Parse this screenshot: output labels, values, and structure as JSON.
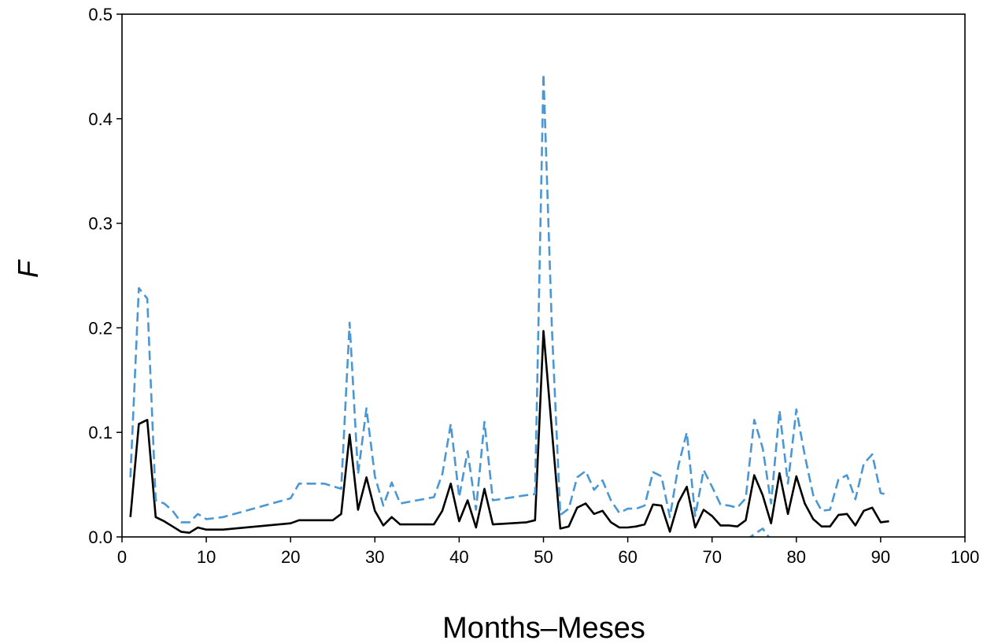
{
  "chart_data": {
    "type": "line",
    "title": "",
    "xlabel": "Months–Meses",
    "ylabel": "F",
    "xlim": [
      0,
      100
    ],
    "ylim": [
      0.0,
      0.5
    ],
    "xticks": [
      0,
      10,
      20,
      30,
      40,
      50,
      60,
      70,
      80,
      90,
      100
    ],
    "xtick_labels": [
      "0",
      "10",
      "20",
      "30",
      "40",
      "50",
      "60",
      "70",
      "80",
      "90",
      "100"
    ],
    "yticks": [
      0.0,
      0.1,
      0.2,
      0.3,
      0.4,
      0.5
    ],
    "ytick_labels": [
      "0.0",
      "0.1",
      "0.2",
      "0.3",
      "0.4",
      "0.5"
    ],
    "grid": false,
    "legend": "none",
    "series": [
      {
        "style": "solid",
        "color": "#000000",
        "points": [
          [
            1,
            0.019
          ],
          [
            2,
            0.108
          ],
          [
            3,
            0.112
          ],
          [
            4,
            0.019
          ],
          [
            5,
            0.015
          ],
          [
            6,
            0.01
          ],
          [
            7,
            0.005
          ],
          [
            8,
            0.004
          ],
          [
            9,
            0.009
          ],
          [
            10,
            0.007
          ],
          [
            12,
            0.007
          ],
          [
            20,
            0.013
          ],
          [
            21,
            0.016
          ],
          [
            25,
            0.016
          ],
          [
            26,
            0.022
          ],
          [
            27,
            0.098
          ],
          [
            28,
            0.026
          ],
          [
            29,
            0.057
          ],
          [
            30,
            0.025
          ],
          [
            31,
            0.011
          ],
          [
            32,
            0.019
          ],
          [
            33,
            0.012
          ],
          [
            37,
            0.012
          ],
          [
            38,
            0.025
          ],
          [
            39,
            0.051
          ],
          [
            40,
            0.015
          ],
          [
            41,
            0.035
          ],
          [
            42,
            0.009
          ],
          [
            43,
            0.046
          ],
          [
            44,
            0.012
          ],
          [
            48,
            0.014
          ],
          [
            49,
            0.016
          ],
          [
            50,
            0.197
          ],
          [
            51,
            0.102
          ],
          [
            52,
            0.008
          ],
          [
            53,
            0.01
          ],
          [
            54,
            0.028
          ],
          [
            55,
            0.032
          ],
          [
            56,
            0.022
          ],
          [
            57,
            0.025
          ],
          [
            58,
            0.014
          ],
          [
            59,
            0.009
          ],
          [
            60,
            0.009
          ],
          [
            61,
            0.01
          ],
          [
            62,
            0.012
          ],
          [
            63,
            0.031
          ],
          [
            64,
            0.03
          ],
          [
            65,
            0.005
          ],
          [
            66,
            0.033
          ],
          [
            67,
            0.048
          ],
          [
            68,
            0.009
          ],
          [
            69,
            0.026
          ],
          [
            70,
            0.02
          ],
          [
            71,
            0.011
          ],
          [
            72,
            0.011
          ],
          [
            73,
            0.01
          ],
          [
            74,
            0.016
          ],
          [
            75,
            0.059
          ],
          [
            76,
            0.04
          ],
          [
            77,
            0.013
          ],
          [
            78,
            0.061
          ],
          [
            79,
            0.022
          ],
          [
            80,
            0.058
          ],
          [
            81,
            0.032
          ],
          [
            82,
            0.017
          ],
          [
            83,
            0.01
          ],
          [
            84,
            0.01
          ],
          [
            85,
            0.021
          ],
          [
            86,
            0.022
          ],
          [
            87,
            0.011
          ],
          [
            88,
            0.025
          ],
          [
            89,
            0.028
          ],
          [
            90,
            0.014
          ],
          [
            91,
            0.015
          ]
        ]
      },
      {
        "style": "dashed",
        "color": "#4a97d3",
        "points": [
          [
            1,
            0.057
          ],
          [
            2,
            0.238
          ],
          [
            3,
            0.228
          ],
          [
            4,
            0.035
          ],
          [
            5,
            0.032
          ],
          [
            6,
            0.025
          ],
          [
            7,
            0.014
          ],
          [
            8,
            0.014
          ],
          [
            9,
            0.022
          ],
          [
            10,
            0.017
          ],
          [
            12,
            0.019
          ],
          [
            20,
            0.037
          ],
          [
            21,
            0.051
          ],
          [
            24,
            0.051
          ],
          [
            26,
            0.046
          ],
          [
            27,
            0.205
          ],
          [
            28,
            0.06
          ],
          [
            29,
            0.123
          ],
          [
            30,
            0.058
          ],
          [
            31,
            0.03
          ],
          [
            32,
            0.052
          ],
          [
            33,
            0.032
          ],
          [
            37,
            0.038
          ],
          [
            38,
            0.06
          ],
          [
            39,
            0.108
          ],
          [
            40,
            0.038
          ],
          [
            41,
            0.082
          ],
          [
            42,
            0.026
          ],
          [
            43,
            0.11
          ],
          [
            44,
            0.035
          ],
          [
            48,
            0.04
          ],
          [
            49,
            0.041
          ],
          [
            50,
            0.443
          ],
          [
            51,
            0.2
          ],
          [
            52,
            0.021
          ],
          [
            53,
            0.027
          ],
          [
            54,
            0.057
          ],
          [
            55,
            0.063
          ],
          [
            56,
            0.045
          ],
          [
            57,
            0.054
          ],
          [
            58,
            0.035
          ],
          [
            59,
            0.023
          ],
          [
            60,
            0.027
          ],
          [
            61,
            0.027
          ],
          [
            62,
            0.03
          ],
          [
            63,
            0.062
          ],
          [
            64,
            0.058
          ],
          [
            65,
            0.019
          ],
          [
            66,
            0.068
          ],
          [
            67,
            0.1
          ],
          [
            68,
            0.02
          ],
          [
            69,
            0.064
          ],
          [
            70,
            0.048
          ],
          [
            71,
            0.031
          ],
          [
            72,
            0.03
          ],
          [
            73,
            0.028
          ],
          [
            74,
            0.037
          ],
          [
            75,
            0.112
          ],
          [
            76,
            0.085
          ],
          [
            77,
            0.032
          ],
          [
            78,
            0.121
          ],
          [
            79,
            0.051
          ],
          [
            80,
            0.122
          ],
          [
            81,
            0.078
          ],
          [
            82,
            0.04
          ],
          [
            83,
            0.025
          ],
          [
            84,
            0.026
          ],
          [
            85,
            0.055
          ],
          [
            86,
            0.059
          ],
          [
            87,
            0.036
          ],
          [
            88,
            0.07
          ],
          [
            89,
            0.079
          ],
          [
            90,
            0.042
          ],
          [
            91,
            0.04
          ]
        ]
      },
      {
        "style": "dashed",
        "color": "#4a97d3",
        "points": [
          [
            74,
            -0.003
          ],
          [
            76,
            0.008
          ],
          [
            77,
            -0.003
          ]
        ]
      }
    ]
  }
}
